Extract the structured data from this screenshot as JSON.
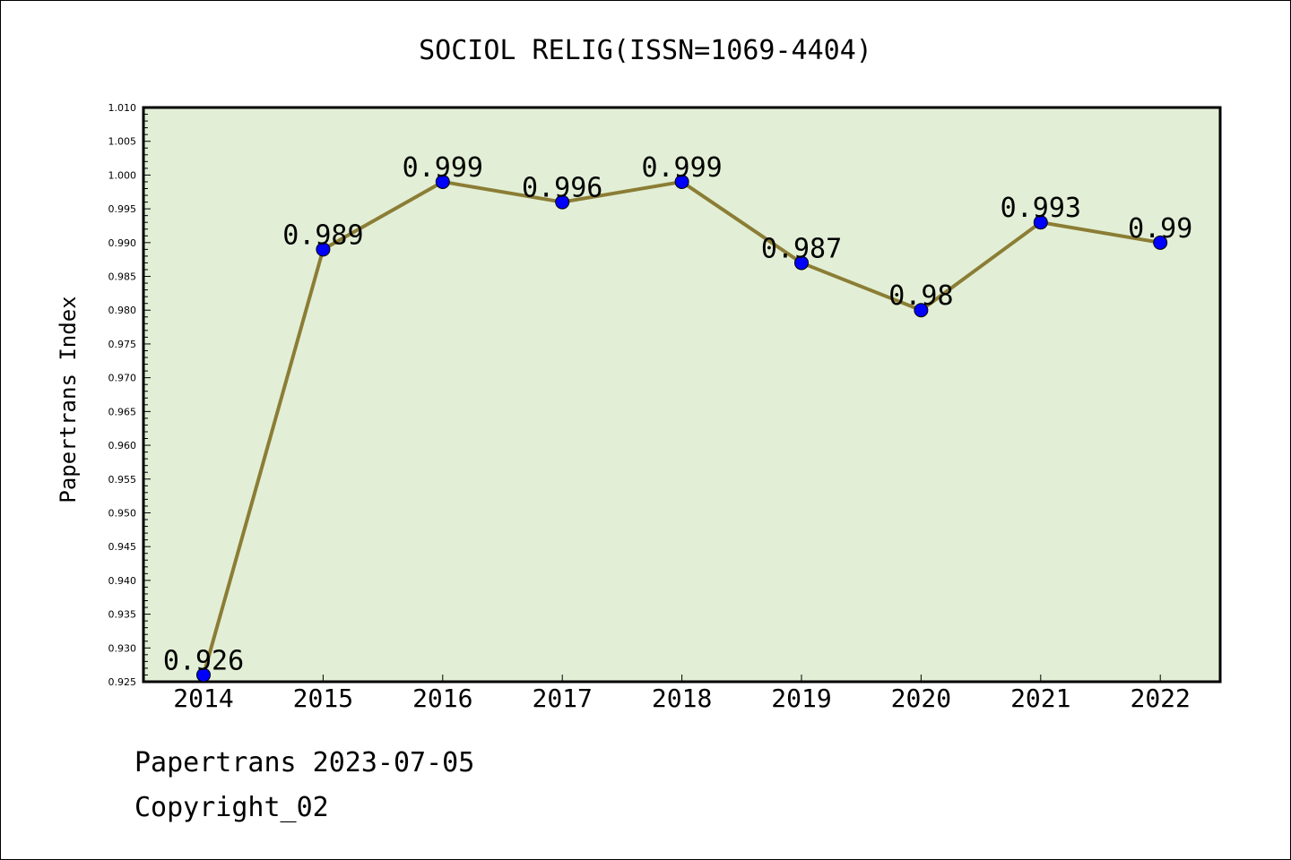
{
  "chart_data": {
    "type": "line",
    "title": "SOCIOL RELIG(ISSN=1069-4404)",
    "xlabel": "",
    "ylabel": "Papertrans Index",
    "categories": [
      "2014",
      "2015",
      "2016",
      "2017",
      "2018",
      "2019",
      "2020",
      "2021",
      "2022"
    ],
    "series": [
      {
        "values": [
          0.926,
          0.989,
          0.999,
          0.996,
          0.999,
          0.987,
          0.98,
          0.993,
          0.99
        ],
        "labels": [
          "0.926",
          "0.989",
          "0.999",
          "0.996",
          "0.999",
          "0.987",
          "0.98",
          "0.993",
          "0.99"
        ]
      }
    ],
    "ylim": [
      0.925,
      1.01
    ],
    "yticks": [
      "0.925",
      "0.930",
      "0.935",
      "0.940",
      "0.945",
      "0.950",
      "0.955",
      "0.960",
      "0.965",
      "0.970",
      "0.975",
      "0.980",
      "0.985",
      "0.990",
      "0.995",
      "1.000",
      "1.005",
      "1.010"
    ],
    "grid": false,
    "colors": {
      "plot_background": "#e2efd6",
      "line": "#8b7d35",
      "marker": "#0000ff"
    }
  },
  "footer": {
    "date_line": "Papertrans 2023-07-05",
    "copyright": "Copyright_02"
  }
}
